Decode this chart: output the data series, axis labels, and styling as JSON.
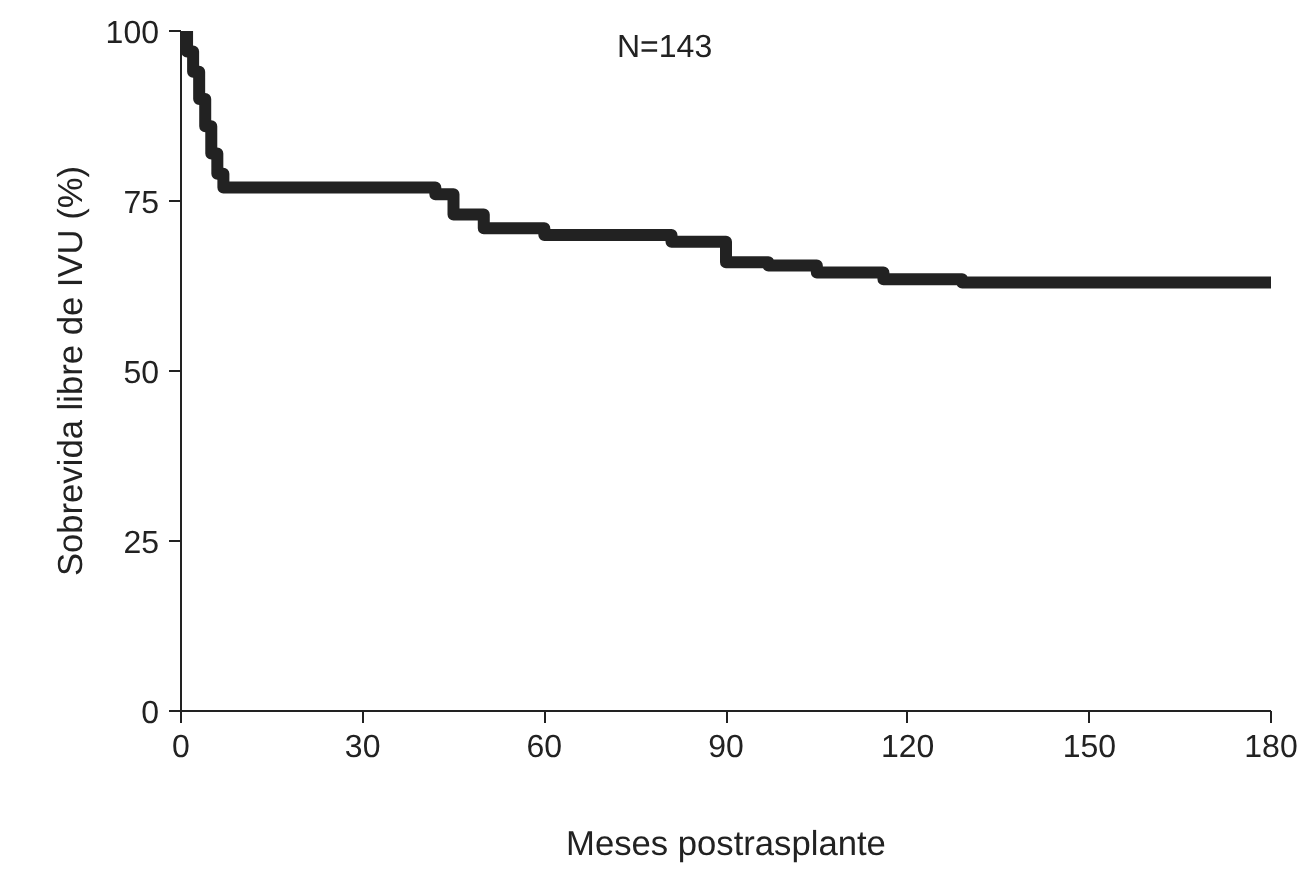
{
  "chart_data": {
    "type": "step",
    "annotations": [
      "N=143"
    ],
    "xlabel": "Meses postrasplante",
    "ylabel": "Sobrevida libre de IVU (%)",
    "x": [
      0,
      1,
      2,
      3,
      4,
      5,
      6,
      7,
      42,
      45,
      50,
      60,
      81,
      90,
      97,
      105,
      116,
      129,
      180
    ],
    "series": [
      {
        "color": "#222222",
        "values": [
          100,
          97,
          94,
          90,
          86,
          82,
          79,
          77,
          76,
          73,
          71,
          70,
          69,
          66,
          65.5,
          64.5,
          63.5,
          63,
          63
        ]
      }
    ],
    "xlim": [
      0,
      180
    ],
    "ylim": [
      0,
      100
    ],
    "xticks": [
      0,
      30,
      60,
      90,
      120,
      150,
      180
    ],
    "yticks": [
      0,
      25,
      50,
      75,
      100
    ],
    "grid": false
  }
}
